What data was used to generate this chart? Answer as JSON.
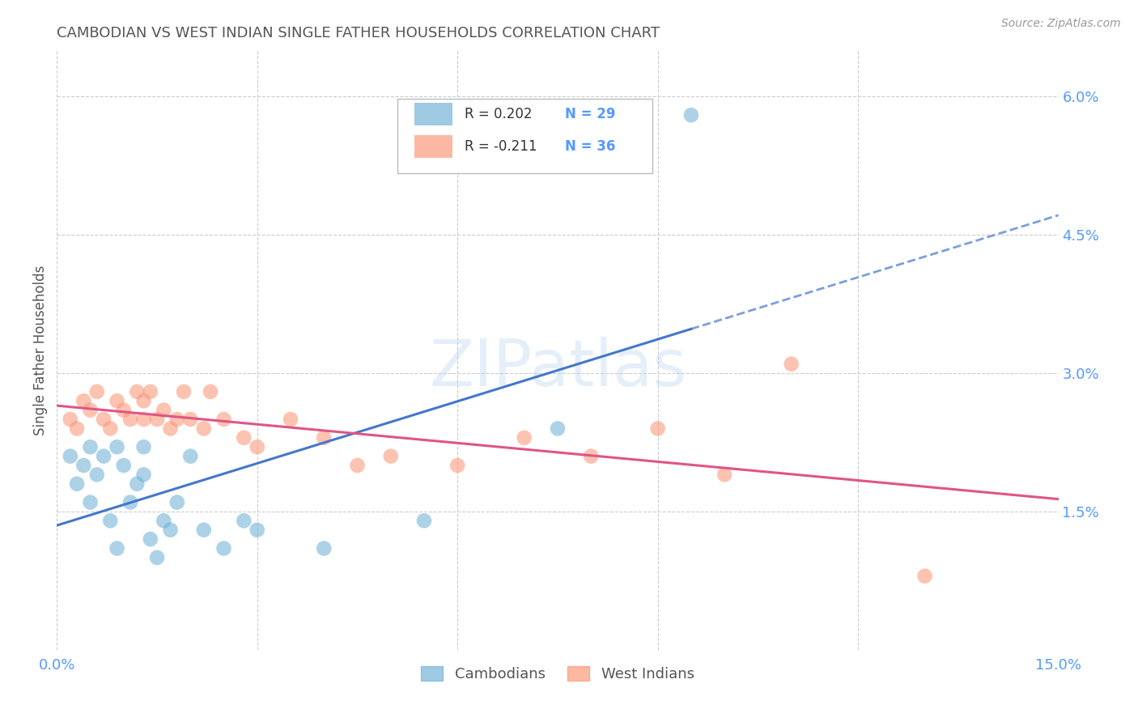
{
  "title": "CAMBODIAN VS WEST INDIAN SINGLE FATHER HOUSEHOLDS CORRELATION CHART",
  "source": "Source: ZipAtlas.com",
  "ylabel": "Single Father Households",
  "xlim": [
    0.0,
    0.15
  ],
  "ylim": [
    0.0,
    0.065
  ],
  "watermark": "ZIPatlas",
  "cambodian_color": "#6baed6",
  "west_indian_color": "#fc9272",
  "cambodian_line_color": "#4477cc",
  "west_indian_line_color": "#e05585",
  "background_color": "#ffffff",
  "grid_color": "#cccccc",
  "title_color": "#555555",
  "axis_label_color": "#555555",
  "tick_color": "#5599ff",
  "cambodian_x": [
    0.002,
    0.003,
    0.004,
    0.005,
    0.005,
    0.006,
    0.007,
    0.008,
    0.009,
    0.009,
    0.01,
    0.011,
    0.012,
    0.013,
    0.013,
    0.014,
    0.015,
    0.016,
    0.017,
    0.018,
    0.02,
    0.022,
    0.025,
    0.028,
    0.03,
    0.04,
    0.055,
    0.075,
    0.095
  ],
  "cambodian_y": [
    0.021,
    0.018,
    0.02,
    0.022,
    0.016,
    0.019,
    0.021,
    0.014,
    0.011,
    0.022,
    0.02,
    0.016,
    0.018,
    0.022,
    0.019,
    0.012,
    0.01,
    0.014,
    0.013,
    0.016,
    0.021,
    0.013,
    0.011,
    0.014,
    0.013,
    0.011,
    0.014,
    0.024,
    0.058
  ],
  "west_indian_x": [
    0.002,
    0.003,
    0.004,
    0.005,
    0.006,
    0.007,
    0.008,
    0.009,
    0.01,
    0.011,
    0.012,
    0.013,
    0.013,
    0.014,
    0.015,
    0.016,
    0.017,
    0.018,
    0.019,
    0.02,
    0.022,
    0.023,
    0.025,
    0.028,
    0.03,
    0.035,
    0.04,
    0.045,
    0.05,
    0.06,
    0.07,
    0.08,
    0.09,
    0.1,
    0.11,
    0.13
  ],
  "west_indian_y": [
    0.025,
    0.024,
    0.027,
    0.026,
    0.028,
    0.025,
    0.024,
    0.027,
    0.026,
    0.025,
    0.028,
    0.027,
    0.025,
    0.028,
    0.025,
    0.026,
    0.024,
    0.025,
    0.028,
    0.025,
    0.024,
    0.028,
    0.025,
    0.023,
    0.022,
    0.025,
    0.023,
    0.02,
    0.021,
    0.02,
    0.023,
    0.021,
    0.024,
    0.019,
    0.031,
    0.008
  ]
}
